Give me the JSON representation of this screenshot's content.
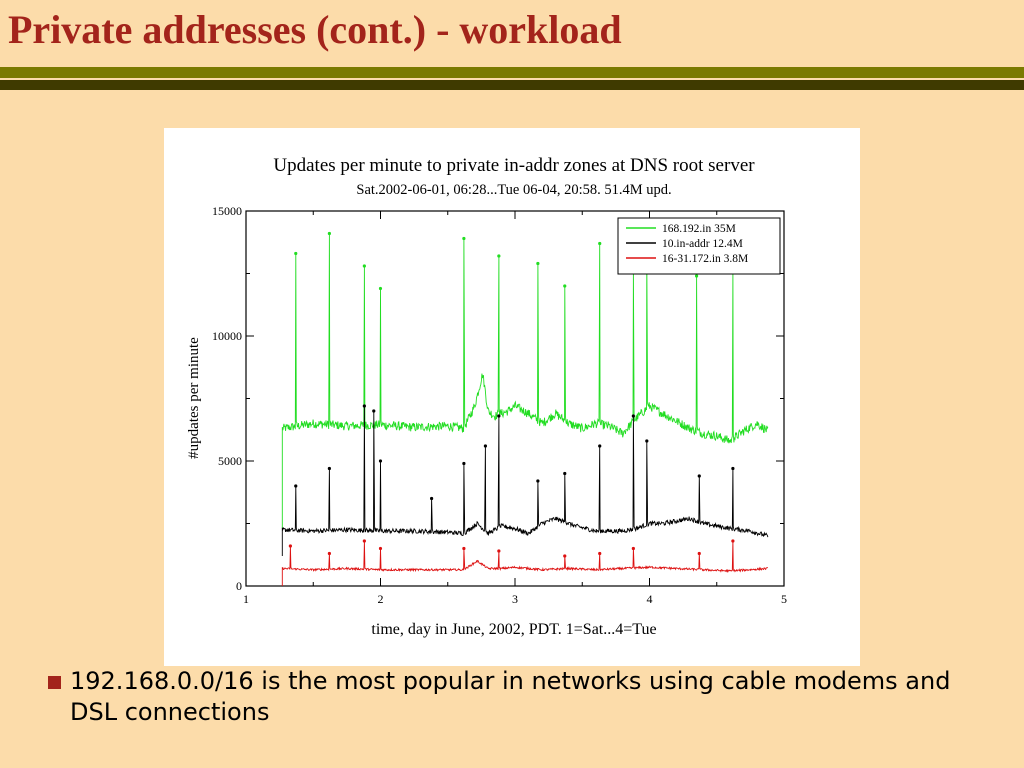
{
  "slide": {
    "title": "Private addresses (cont.) - workload",
    "bullet": "192.168.0.0/16 is the most popular in networks using cable modems and DSL connections"
  },
  "colors": {
    "background": "#FCDCAA",
    "title": "#A3241B",
    "bar_olive": "#7A7A00",
    "bar_dark": "#3F3A00"
  },
  "chart_data": {
    "type": "line",
    "title": "Updates per minute to private in-addr zones at DNS root server",
    "subtitle": "Sat.2002-06-01, 06:28...Tue 06-04, 20:58. 51.4M upd.",
    "xlabel": "time, day in June, 2002, PDT. 1=Sat...4=Tue",
    "ylabel": "#updates per minute",
    "xlim": [
      1,
      5
    ],
    "ylim": [
      0,
      15000
    ],
    "x_ticks": [
      "1",
      "2",
      "3",
      "4",
      "5"
    ],
    "y_ticks": [
      "0",
      "5000",
      "10000",
      "15000"
    ],
    "legend_position": "top-right",
    "grid": false,
    "series": [
      {
        "name": "168.192.in 35M",
        "color": "#22DD22",
        "baseline": [
          [
            1.27,
            6300
          ],
          [
            1.5,
            6500
          ],
          [
            1.75,
            6400
          ],
          [
            2.0,
            6450
          ],
          [
            2.25,
            6350
          ],
          [
            2.5,
            6400
          ],
          [
            2.62,
            6300
          ],
          [
            2.7,
            7200
          ],
          [
            2.76,
            8500
          ],
          [
            2.8,
            7000
          ],
          [
            2.85,
            6800
          ],
          [
            2.95,
            7000
          ],
          [
            3.0,
            7200
          ],
          [
            3.1,
            6900
          ],
          [
            3.2,
            6500
          ],
          [
            3.3,
            6900
          ],
          [
            3.4,
            6500
          ],
          [
            3.5,
            6300
          ],
          [
            3.6,
            6500
          ],
          [
            3.7,
            6400
          ],
          [
            3.8,
            6100
          ],
          [
            3.9,
            6700
          ],
          [
            4.0,
            7200
          ],
          [
            4.1,
            6900
          ],
          [
            4.2,
            6600
          ],
          [
            4.3,
            6300
          ],
          [
            4.4,
            6100
          ],
          [
            4.5,
            6000
          ],
          [
            4.6,
            5800
          ],
          [
            4.7,
            6200
          ],
          [
            4.8,
            6500
          ],
          [
            4.88,
            6200
          ]
        ],
        "spikes": [
          [
            1.37,
            13300
          ],
          [
            1.62,
            14100
          ],
          [
            1.88,
            12800
          ],
          [
            2.0,
            11900
          ],
          [
            2.62,
            13900
          ],
          [
            2.88,
            13200
          ],
          [
            3.17,
            12900
          ],
          [
            3.37,
            12000
          ],
          [
            3.63,
            13700
          ],
          [
            3.88,
            12600
          ],
          [
            3.98,
            13100
          ],
          [
            4.35,
            12400
          ],
          [
            4.62,
            12600
          ]
        ],
        "noise": 180
      },
      {
        "name": "10.in-addr 12.4M",
        "color": "#000000",
        "baseline": [
          [
            1.27,
            2250
          ],
          [
            1.5,
            2200
          ],
          [
            1.75,
            2250
          ],
          [
            2.0,
            2200
          ],
          [
            2.25,
            2200
          ],
          [
            2.5,
            2150
          ],
          [
            2.62,
            2100
          ],
          [
            2.72,
            2500
          ],
          [
            2.8,
            2100
          ],
          [
            2.9,
            2400
          ],
          [
            3.0,
            2300
          ],
          [
            3.1,
            2100
          ],
          [
            3.2,
            2500
          ],
          [
            3.3,
            2700
          ],
          [
            3.45,
            2400
          ],
          [
            3.6,
            2200
          ],
          [
            3.8,
            2200
          ],
          [
            3.9,
            2300
          ],
          [
            4.0,
            2500
          ],
          [
            4.1,
            2500
          ],
          [
            4.3,
            2700
          ],
          [
            4.4,
            2500
          ],
          [
            4.6,
            2300
          ],
          [
            4.75,
            2200
          ],
          [
            4.88,
            2000
          ]
        ],
        "spikes": [
          [
            1.37,
            4000
          ],
          [
            1.62,
            4700
          ],
          [
            1.88,
            7200
          ],
          [
            1.95,
            7000
          ],
          [
            2.0,
            5000
          ],
          [
            2.38,
            3500
          ],
          [
            2.62,
            4900
          ],
          [
            2.78,
            5600
          ],
          [
            2.88,
            6800
          ],
          [
            3.17,
            4200
          ],
          [
            3.37,
            4500
          ],
          [
            3.63,
            5600
          ],
          [
            3.88,
            6800
          ],
          [
            3.98,
            5800
          ],
          [
            4.37,
            4400
          ],
          [
            4.62,
            4700
          ]
        ],
        "noise": 90
      },
      {
        "name": "16-31.172.in 3.8M",
        "color": "#DD1111",
        "baseline": [
          [
            1.27,
            700
          ],
          [
            1.5,
            650
          ],
          [
            1.75,
            700
          ],
          [
            2.0,
            650
          ],
          [
            2.25,
            650
          ],
          [
            2.5,
            650
          ],
          [
            2.62,
            650
          ],
          [
            2.72,
            1000
          ],
          [
            2.8,
            700
          ],
          [
            2.9,
            700
          ],
          [
            3.0,
            750
          ],
          [
            3.2,
            650
          ],
          [
            3.4,
            700
          ],
          [
            3.6,
            650
          ],
          [
            3.8,
            700
          ],
          [
            4.0,
            750
          ],
          [
            4.2,
            700
          ],
          [
            4.4,
            650
          ],
          [
            4.6,
            600
          ],
          [
            4.88,
            700
          ]
        ],
        "spikes": [
          [
            1.33,
            1600
          ],
          [
            1.62,
            1300
          ],
          [
            1.88,
            1800
          ],
          [
            2.0,
            1500
          ],
          [
            2.62,
            1500
          ],
          [
            2.88,
            1400
          ],
          [
            3.37,
            1200
          ],
          [
            3.63,
            1300
          ],
          [
            3.88,
            1500
          ],
          [
            4.37,
            1300
          ],
          [
            4.62,
            1800
          ]
        ],
        "noise": 40
      }
    ]
  }
}
